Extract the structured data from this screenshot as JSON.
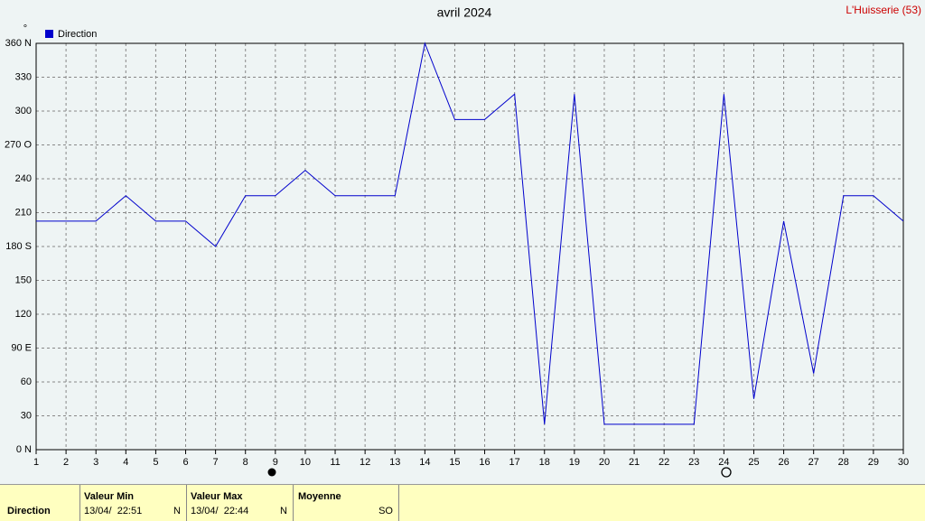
{
  "chart_data": {
    "type": "line",
    "title": "avril 2024",
    "station": "L'Huisserie (53)",
    "y_unit": "°",
    "x": [
      1,
      2,
      3,
      4,
      5,
      6,
      7,
      8,
      9,
      10,
      11,
      12,
      13,
      14,
      15,
      16,
      17,
      18,
      19,
      20,
      21,
      22,
      23,
      24,
      25,
      26,
      27,
      28,
      29,
      30
    ],
    "series": [
      {
        "name": "Direction",
        "color": "#0000cc",
        "values": [
          202.5,
          202.5,
          202.5,
          225,
          202.5,
          202.5,
          180,
          225,
          225,
          247.5,
          225,
          225,
          225,
          360,
          292.5,
          292.5,
          315,
          22.5,
          315,
          22.5,
          22.5,
          22.5,
          22.5,
          315,
          45,
          202.5,
          67.5,
          225,
          225,
          202.5
        ]
      }
    ],
    "xlim": [
      1,
      30
    ],
    "xticks": [
      1,
      2,
      3,
      4,
      5,
      6,
      7,
      8,
      9,
      10,
      11,
      12,
      13,
      14,
      15,
      16,
      17,
      18,
      19,
      20,
      21,
      22,
      23,
      24,
      25,
      26,
      27,
      28,
      29,
      30
    ],
    "ylim": [
      0,
      360
    ],
    "yticks": [
      {
        "value": 0,
        "label": "0  N"
      },
      30,
      60,
      {
        "value": 90,
        "label": "90  E"
      },
      120,
      150,
      {
        "value": 180,
        "label": "180 S"
      },
      210,
      240,
      {
        "value": 270,
        "label": "270 O"
      },
      300,
      330,
      {
        "value": 360,
        "label": "360 N"
      }
    ],
    "grid": true,
    "legend": "top-left"
  },
  "summary_table": {
    "row_label": "Direction",
    "columns": [
      {
        "header": "Valeur Min",
        "date": "13/04/  22:51",
        "dir": "N"
      },
      {
        "header": "Valeur Max",
        "date": "13/04/  22:44",
        "dir": "N"
      },
      {
        "header": "Moyenne",
        "dir": "SO"
      }
    ]
  }
}
